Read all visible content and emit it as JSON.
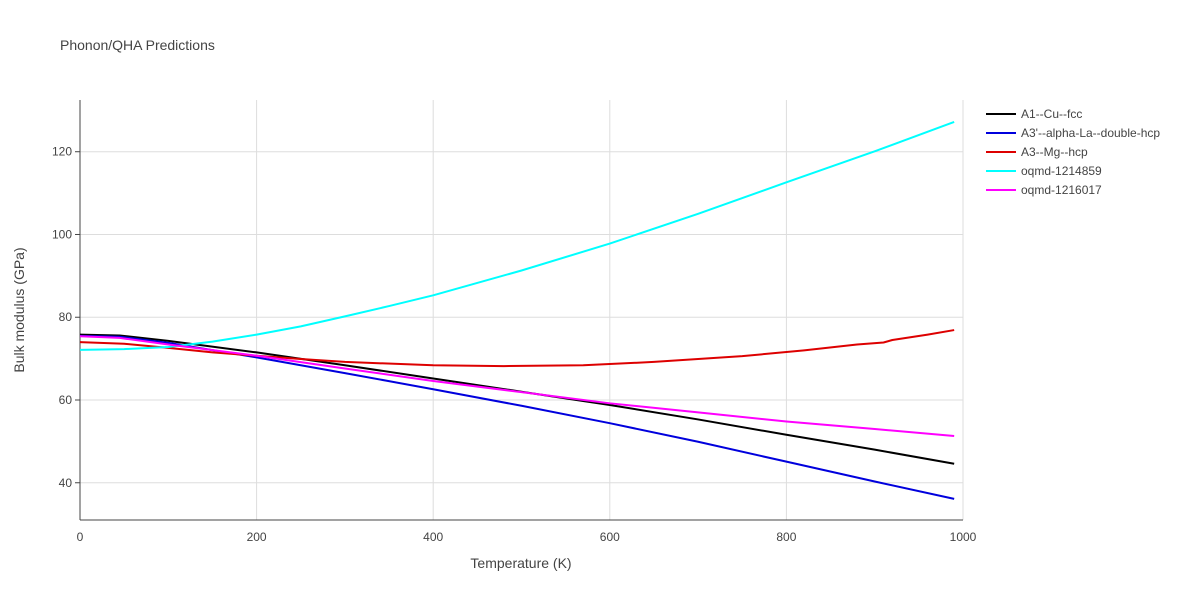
{
  "chart_data": {
    "type": "line",
    "title": "Phonon/QHA Predictions",
    "xlabel": "Temperature (K)",
    "ylabel": "Bulk modulus (GPa)",
    "xlim": [
      0,
      1000
    ],
    "ylim": [
      31,
      132.5
    ],
    "xticks": [
      0,
      200,
      400,
      600,
      800,
      1000
    ],
    "yticks": [
      40,
      60,
      80,
      100,
      120
    ],
    "grid": true,
    "legend_position": "top-right",
    "series": [
      {
        "name": "A1--Cu--fcc",
        "color": "#000000",
        "x": [
          0,
          45,
          100,
          200,
          300,
          400,
          500,
          600,
          700,
          800,
          900,
          990
        ],
        "y": [
          75.8,
          75.6,
          74.3,
          71.5,
          68.4,
          65.2,
          62.0,
          58.8,
          55.3,
          51.6,
          48.0,
          44.6
        ]
      },
      {
        "name": "A3'--alpha-La--double-hcp",
        "color": "#0000dd",
        "x": [
          0,
          45,
          100,
          200,
          300,
          400,
          500,
          600,
          700,
          800,
          900,
          990
        ],
        "y": [
          75.5,
          75.3,
          73.8,
          70.3,
          66.5,
          62.6,
          58.6,
          54.4,
          49.9,
          45.1,
          40.3,
          36.1
        ]
      },
      {
        "name": "A3--Mg--hcp",
        "color": "#dd0000",
        "x": [
          0,
          50,
          100,
          150,
          200,
          250,
          300,
          400,
          480,
          570,
          650,
          750,
          820,
          880,
          910,
          920,
          960,
          990
        ],
        "y": [
          74.0,
          73.6,
          72.6,
          71.5,
          70.7,
          69.9,
          69.2,
          68.4,
          68.2,
          68.4,
          69.2,
          70.6,
          72.0,
          73.4,
          73.9,
          74.5,
          75.8,
          76.9
        ]
      },
      {
        "name": "oqmd-1214859",
        "color": "#00ffff",
        "x": [
          0,
          50,
          100,
          150,
          200,
          250,
          300,
          350,
          400,
          500,
          600,
          700,
          800,
          900,
          990
        ],
        "y": [
          72.1,
          72.3,
          72.8,
          74.1,
          75.8,
          77.8,
          80.2,
          82.7,
          85.3,
          91.3,
          97.8,
          105.0,
          112.6,
          120.1,
          127.2
        ]
      },
      {
        "name": "oqmd-1216017",
        "color": "#ff00ff",
        "x": [
          0,
          45,
          100,
          200,
          300,
          400,
          500,
          600,
          700,
          800,
          900,
          990
        ],
        "y": [
          75.4,
          75.0,
          73.4,
          70.7,
          67.6,
          64.6,
          61.9,
          59.2,
          57.0,
          54.8,
          53.0,
          51.3
        ]
      }
    ]
  }
}
